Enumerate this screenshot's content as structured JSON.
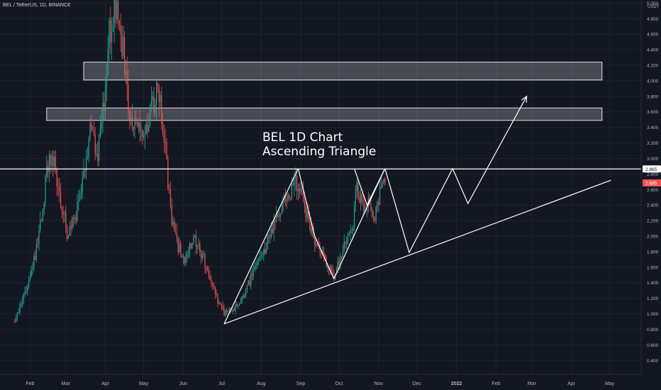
{
  "header": {
    "symbol": "BEL / TetherUS, 1D, BINANCE"
  },
  "annotation": {
    "line1": "BEL 1D Chart",
    "line2": "Ascending Triangle"
  },
  "colors": {
    "background": "#131722",
    "up": "#26a69a",
    "down": "#ef5350",
    "drawing": "#ffffff",
    "grid": "#1f2330",
    "axis_text": "#b2b5be",
    "current_price_bg": "#ef5350"
  },
  "chart_data": {
    "type": "candlestick",
    "title": "BEL 1D Chart",
    "subtitle": "Ascending Triangle",
    "ylim": [
      0.22,
      5.04
    ],
    "y_ticks": [
      "0.400",
      "0.600",
      "0.800",
      "1.000",
      "1.200",
      "1.400",
      "1.600",
      "1.800",
      "2.000",
      "2.200",
      "2.400",
      "2.600",
      "2.800",
      "3.000",
      "3.200",
      "3.400",
      "3.600",
      "3.800",
      "4.000",
      "4.200",
      "4.400",
      "4.600",
      "4.800",
      "5.000"
    ],
    "y_unit": "USDT",
    "x_ticks": [
      "Feb",
      "Mar",
      "Apr",
      "May",
      "Jun",
      "Jul",
      "Aug",
      "Sep",
      "Oct",
      "Nov",
      "Dec",
      "2022",
      "Feb",
      "Mar",
      "Apr",
      "May"
    ],
    "x_tick_dates": [
      "2021-02-01",
      "2021-03-01",
      "2021-04-01",
      "2021-05-01",
      "2021-06-01",
      "2021-07-01",
      "2021-08-01",
      "2021-09-01",
      "2021-10-01",
      "2021-11-01",
      "2021-12-01",
      "2022-01-01",
      "2022-02-01",
      "2022-03-01",
      "2022-04-01",
      "2022-05-01"
    ],
    "price_path": [
      {
        "date": "2021-01-20",
        "price": 0.93
      },
      {
        "date": "2021-01-28",
        "price": 1.25
      },
      {
        "date": "2021-02-05",
        "price": 1.75
      },
      {
        "date": "2021-02-11",
        "price": 2.4
      },
      {
        "date": "2021-02-16",
        "price": 3.05
      },
      {
        "date": "2021-02-20",
        "price": 2.95
      },
      {
        "date": "2021-02-25",
        "price": 2.45
      },
      {
        "date": "2021-03-02",
        "price": 2.05
      },
      {
        "date": "2021-03-08",
        "price": 2.2
      },
      {
        "date": "2021-03-14",
        "price": 2.7
      },
      {
        "date": "2021-03-20",
        "price": 3.35
      },
      {
        "date": "2021-03-26",
        "price": 3.1
      },
      {
        "date": "2021-04-01",
        "price": 3.8
      },
      {
        "date": "2021-04-04",
        "price": 4.6
      },
      {
        "date": "2021-04-09",
        "price": 4.9
      },
      {
        "date": "2021-04-15",
        "price": 4.4
      },
      {
        "date": "2021-04-20",
        "price": 3.5
      },
      {
        "date": "2021-04-25",
        "price": 3.4
      },
      {
        "date": "2021-05-01",
        "price": 3.2
      },
      {
        "date": "2021-05-07",
        "price": 3.6
      },
      {
        "date": "2021-05-12",
        "price": 3.95
      },
      {
        "date": "2021-05-17",
        "price": 3.3
      },
      {
        "date": "2021-05-22",
        "price": 2.3
      },
      {
        "date": "2021-05-28",
        "price": 1.85
      },
      {
        "date": "2021-06-03",
        "price": 1.7
      },
      {
        "date": "2021-06-09",
        "price": 1.95
      },
      {
        "date": "2021-06-16",
        "price": 1.75
      },
      {
        "date": "2021-06-23",
        "price": 1.45
      },
      {
        "date": "2021-06-28",
        "price": 1.15
      },
      {
        "date": "2021-07-03",
        "price": 1.0
      },
      {
        "date": "2021-07-10",
        "price": 1.05
      },
      {
        "date": "2021-07-17",
        "price": 1.2
      },
      {
        "date": "2021-07-24",
        "price": 1.45
      },
      {
        "date": "2021-07-31",
        "price": 1.7
      },
      {
        "date": "2021-08-07",
        "price": 1.95
      },
      {
        "date": "2021-08-14",
        "price": 2.25
      },
      {
        "date": "2021-08-21",
        "price": 2.5
      },
      {
        "date": "2021-08-28",
        "price": 2.7
      },
      {
        "date": "2021-09-02",
        "price": 2.55
      },
      {
        "date": "2021-09-07",
        "price": 2.2
      },
      {
        "date": "2021-09-12",
        "price": 1.95
      },
      {
        "date": "2021-09-18",
        "price": 1.8
      },
      {
        "date": "2021-09-23",
        "price": 1.55
      },
      {
        "date": "2021-09-27",
        "price": 1.5
      },
      {
        "date": "2021-10-02",
        "price": 1.75
      },
      {
        "date": "2021-10-08",
        "price": 2.0
      },
      {
        "date": "2021-10-12",
        "price": 2.15
      },
      {
        "date": "2021-10-15",
        "price": 2.7
      },
      {
        "date": "2021-10-19",
        "price": 2.35
      },
      {
        "date": "2021-10-25",
        "price": 2.4
      },
      {
        "date": "2021-10-29",
        "price": 2.25
      },
      {
        "date": "2021-11-03",
        "price": 2.6
      },
      {
        "date": "2021-11-06",
        "price": 2.685
      }
    ],
    "zones": [
      {
        "name": "resistance-upper",
        "from": "2021-03-15",
        "to": "2022-04-25",
        "low": 4.01,
        "high": 4.24
      },
      {
        "name": "resistance-lower",
        "from": "2021-02-14",
        "to": "2022-04-25",
        "low": 3.49,
        "high": 3.65
      }
    ],
    "lines": [
      {
        "name": "horizontal-resistance",
        "price": 2.865
      },
      {
        "name": "ascending-support",
        "from": {
          "date": "2021-07-03",
          "price": 0.87
        },
        "to": {
          "date": "2022-05-02",
          "price": 2.72
        }
      },
      {
        "name": "left-rise",
        "from": {
          "date": "2021-07-03",
          "price": 0.87
        },
        "to": {
          "date": "2021-08-30",
          "price": 2.87
        }
      },
      {
        "name": "right-rise",
        "from": {
          "date": "2021-09-27",
          "price": 1.45
        },
        "to": {
          "date": "2021-11-06",
          "price": 2.87
        }
      }
    ],
    "zigzags": [
      {
        "name": "sep-swing",
        "points": [
          {
            "date": "2021-08-30",
            "price": 2.87
          },
          {
            "date": "2021-09-12",
            "price": 2.0
          },
          {
            "date": "2021-09-27",
            "price": 1.45
          }
        ]
      },
      {
        "name": "oct-swing",
        "points": [
          {
            "date": "2021-10-13",
            "price": 2.87
          },
          {
            "date": "2021-10-23",
            "price": 2.4
          },
          {
            "date": "2021-11-06",
            "price": 2.87
          }
        ]
      }
    ],
    "projection": [
      {
        "date": "2021-11-06",
        "price": 2.87
      },
      {
        "date": "2021-11-25",
        "price": 1.79
      },
      {
        "date": "2021-12-29",
        "price": 2.87
      },
      {
        "date": "2022-01-10",
        "price": 2.42
      },
      {
        "date": "2022-02-25",
        "price": 3.8
      }
    ],
    "horizontal_line_price": "2.865",
    "current_price": "2.685",
    "current_price_value": 2.685
  }
}
